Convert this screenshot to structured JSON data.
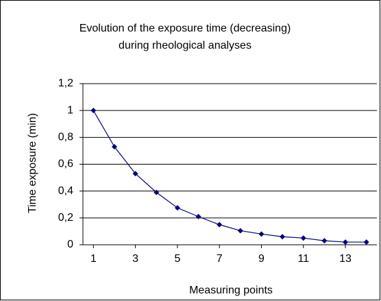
{
  "chart_data": {
    "type": "line",
    "title": [
      "Evolution of the exposure time (decreasing)",
      "during rheological analyses"
    ],
    "x_label": "Measuring points",
    "y_label": "Time exposure (min)",
    "x": [
      1,
      2,
      3,
      4,
      5,
      6,
      7,
      8,
      9,
      10,
      11,
      12,
      13,
      14
    ],
    "series": [
      {
        "name": "Time exposure",
        "color": "#000080",
        "values": [
          1,
          0.73,
          0.53,
          0.39,
          0.275,
          0.21,
          0.15,
          0.105,
          0.08,
          0.06,
          0.05,
          0.03,
          0.02,
          0.02
        ]
      }
    ],
    "xlim": [
      0.5,
      14.5
    ],
    "xticks": [
      1,
      3,
      5,
      7,
      9,
      11,
      13
    ],
    "ylim": [
      0,
      1.2
    ],
    "yticks": [
      0,
      {
        "value": 0.2,
        "label": "0,2"
      },
      {
        "value": 0.4,
        "label": "0,4"
      },
      {
        "value": 0.6,
        "label": "0,6"
      },
      {
        "value": 0.8,
        "label": "0,8"
      },
      1,
      {
        "value": 1.2,
        "label": "1,2"
      }
    ],
    "grid": true
  }
}
